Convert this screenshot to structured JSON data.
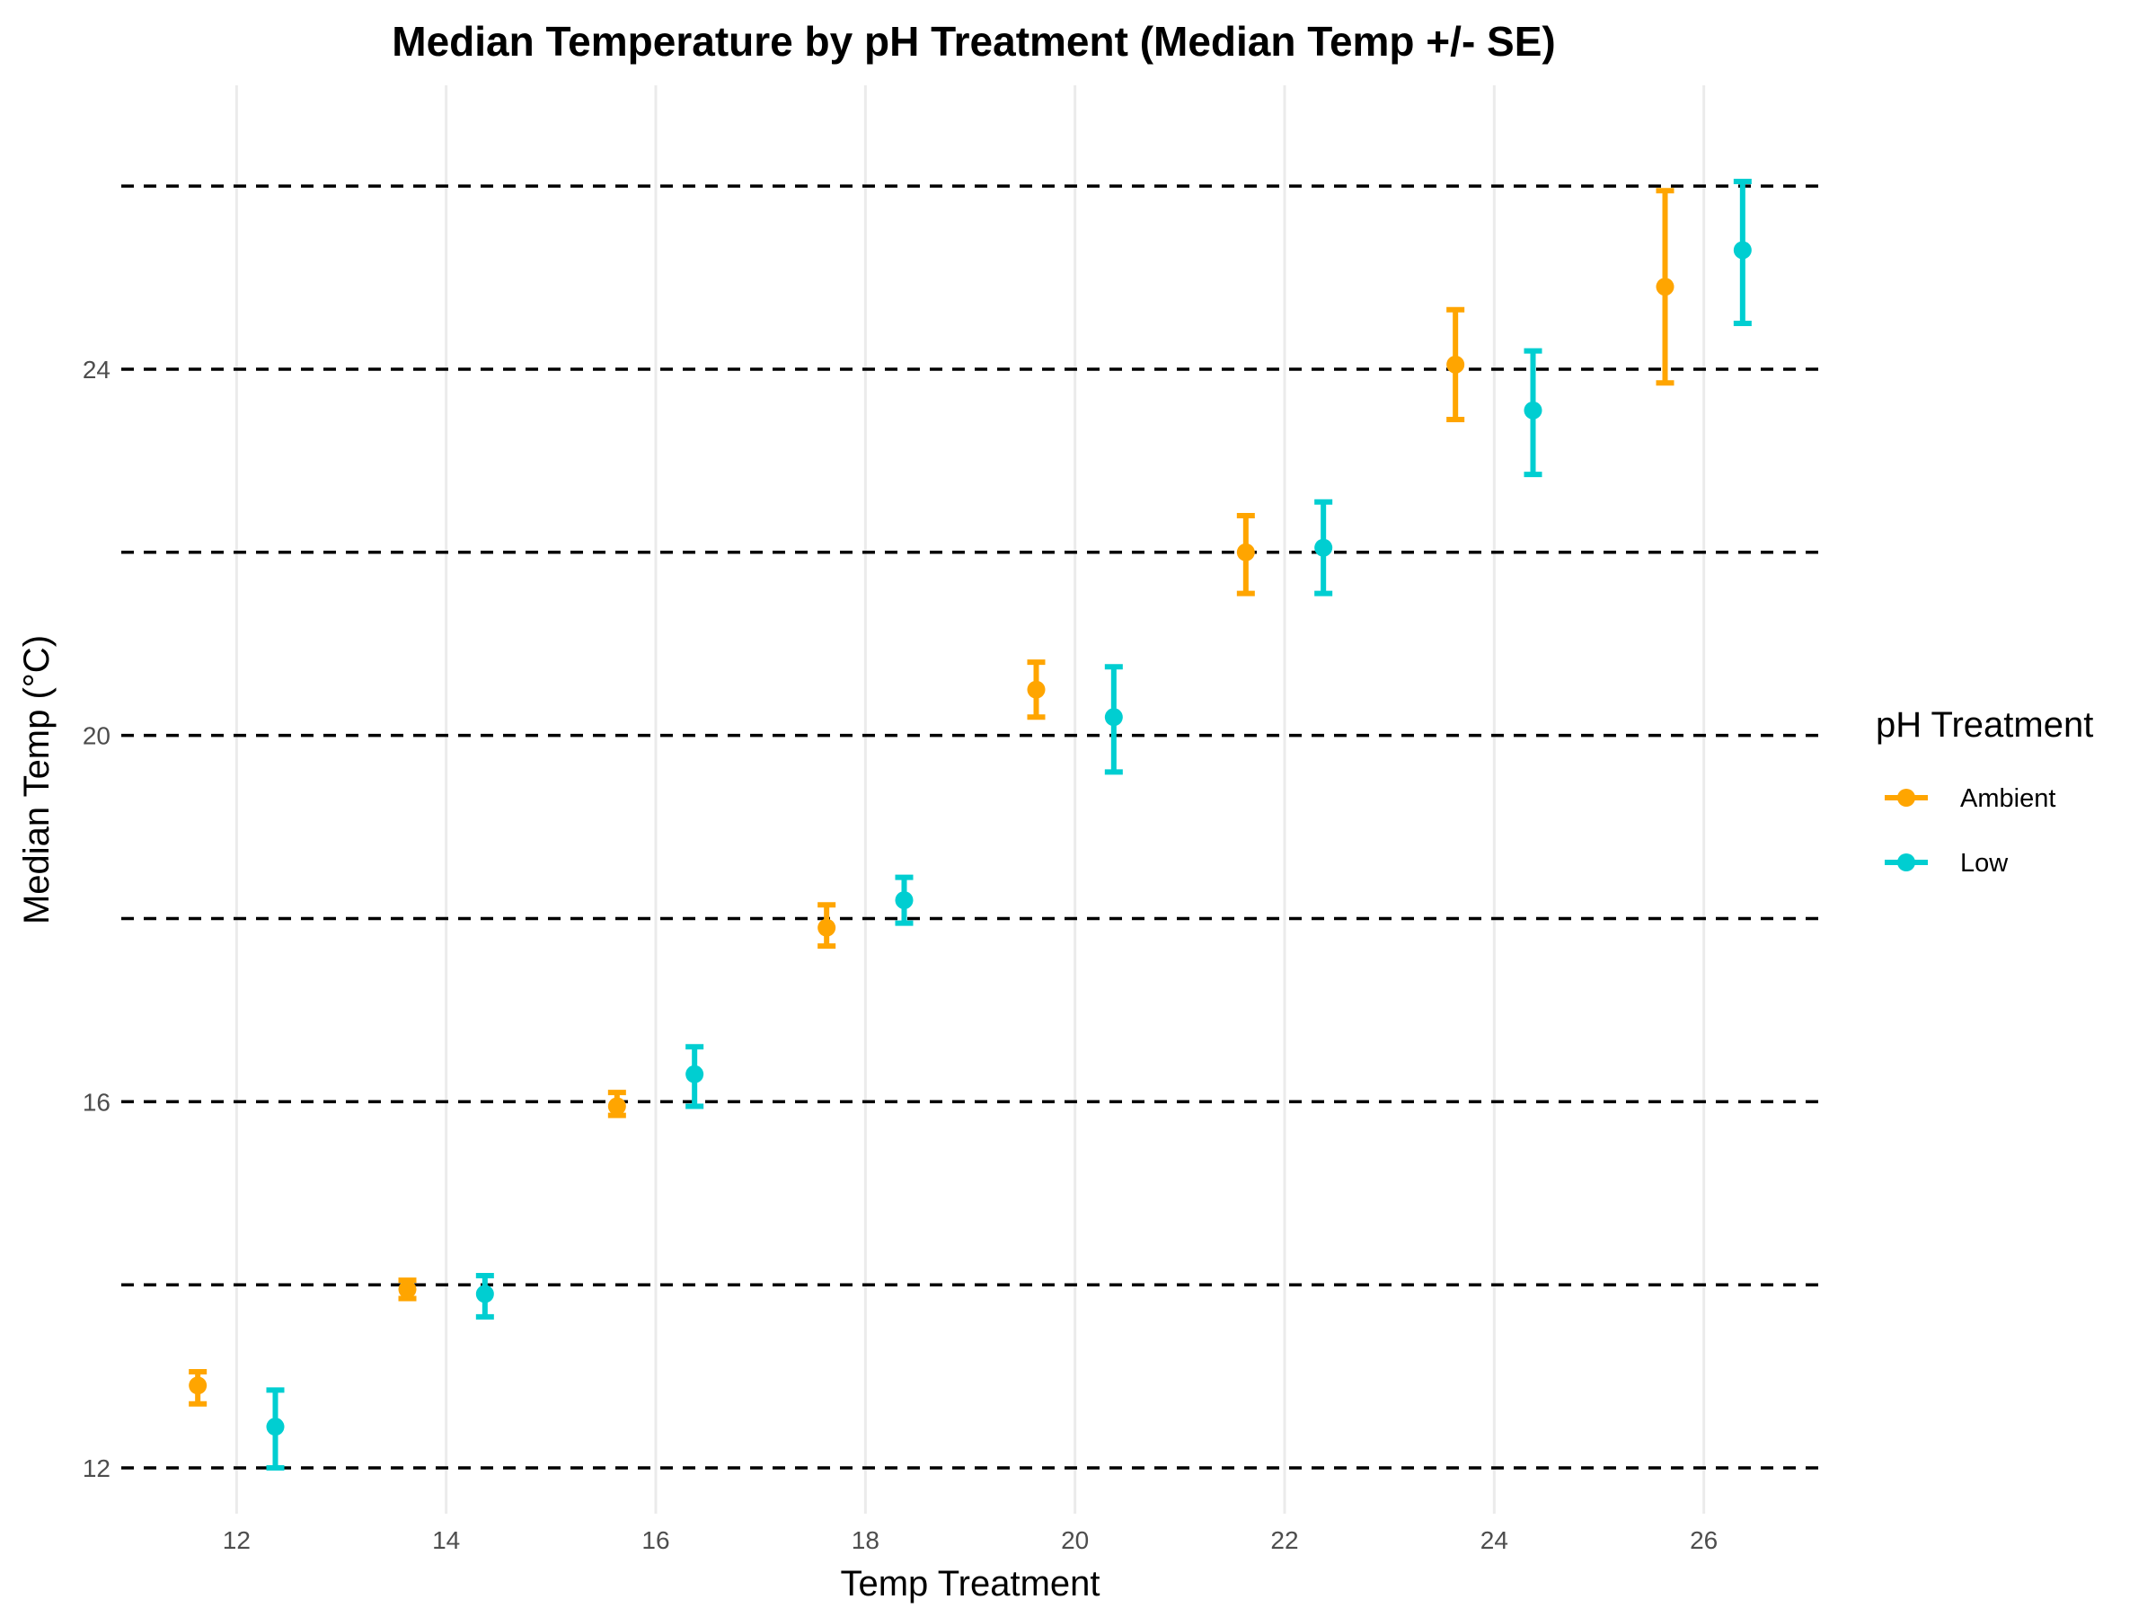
{
  "chart_data": {
    "type": "scatter",
    "title": "Median Temperature by pH Treatment (Median Temp +/- SE)",
    "xlabel": "Temp Treatment",
    "ylabel": "Median Temp (°C)",
    "xlim": [
      10.9,
      27.1
    ],
    "ylim": [
      11.5,
      27.1
    ],
    "x_ticks": [
      12,
      14,
      16,
      18,
      20,
      22,
      24,
      26
    ],
    "y_ticks": [
      12,
      16,
      20,
      24
    ],
    "hlines": [
      12,
      14,
      16,
      18,
      20,
      22,
      24,
      26
    ],
    "grid": "vertical major only",
    "legend": {
      "title": "pH Treatment",
      "position": "right"
    },
    "series": [
      {
        "name": "Ambient",
        "color": "#FFA500",
        "points": [
          {
            "x": 11.63,
            "y": 12.9,
            "lower": 12.7,
            "upper": 13.05
          },
          {
            "x": 13.63,
            "y": 13.95,
            "lower": 13.85,
            "upper": 14.05
          },
          {
            "x": 15.63,
            "y": 15.95,
            "lower": 15.85,
            "upper": 16.1
          },
          {
            "x": 17.63,
            "y": 17.9,
            "lower": 17.7,
            "upper": 18.15
          },
          {
            "x": 19.63,
            "y": 20.5,
            "lower": 20.2,
            "upper": 20.8
          },
          {
            "x": 21.63,
            "y": 22.0,
            "lower": 21.55,
            "upper": 22.4
          },
          {
            "x": 23.63,
            "y": 24.05,
            "lower": 23.45,
            "upper": 24.65
          },
          {
            "x": 25.63,
            "y": 24.9,
            "lower": 23.85,
            "upper": 25.95
          }
        ]
      },
      {
        "name": "Low",
        "color": "#00CED1",
        "points": [
          {
            "x": 12.37,
            "y": 12.45,
            "lower": 12.0,
            "upper": 12.85
          },
          {
            "x": 14.37,
            "y": 13.9,
            "lower": 13.65,
            "upper": 14.1
          },
          {
            "x": 16.37,
            "y": 16.3,
            "lower": 15.95,
            "upper": 16.6
          },
          {
            "x": 18.37,
            "y": 18.2,
            "lower": 17.95,
            "upper": 18.45
          },
          {
            "x": 20.37,
            "y": 20.2,
            "lower": 19.6,
            "upper": 20.75
          },
          {
            "x": 22.37,
            "y": 22.05,
            "lower": 21.55,
            "upper": 22.55
          },
          {
            "x": 24.37,
            "y": 23.55,
            "lower": 22.85,
            "upper": 24.2
          },
          {
            "x": 26.37,
            "y": 25.3,
            "lower": 24.5,
            "upper": 26.05
          }
        ]
      }
    ]
  }
}
